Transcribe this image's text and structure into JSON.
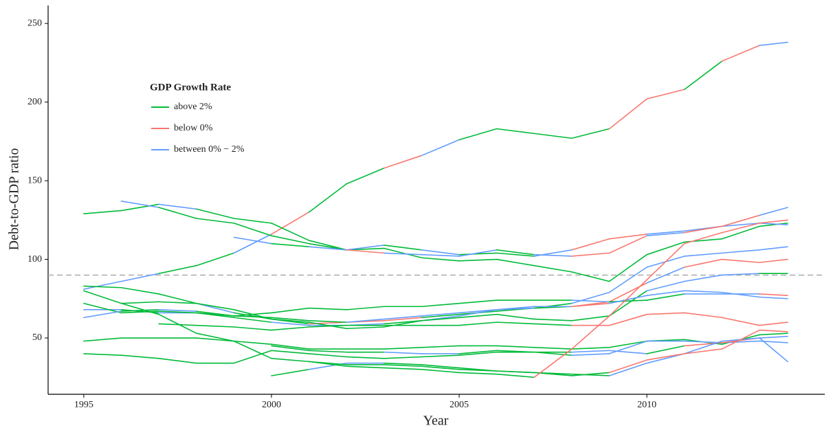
{
  "chart_data": {
    "type": "line",
    "x_label": "Year",
    "y_label": "Debt-to-GDP ratio",
    "legend_title": "GDP Growth Rate",
    "legend_position": "upper-left",
    "legend": [
      {
        "name": "above 2%",
        "color": "#00BA38"
      },
      {
        "name": "below 0%",
        "color": "#F8766D"
      },
      {
        "name": "between 0% − 2%",
        "color": "#619CFF"
      }
    ],
    "x": [
      1995,
      1996,
      1997,
      1998,
      1999,
      2000,
      2001,
      2002,
      2003,
      2004,
      2005,
      2006,
      2007,
      2008,
      2009,
      2010,
      2011,
      2012,
      2013,
      2013.75
    ],
    "lines": [
      {
        "values": [
          81,
          86,
          91,
          96,
          104,
          116,
          130,
          148,
          158,
          166,
          176,
          183,
          180,
          177,
          183,
          202,
          208,
          226,
          236,
          238
        ],
        "colors": [
          "#619CFF",
          "#619CFF",
          "#00BA38",
          "#00BA38",
          "#619CFF",
          "#F8766D",
          "#00BA38",
          "#00BA38",
          "#F8766D",
          "#619CFF",
          "#00BA38",
          "#00BA38",
          "#00BA38",
          "#00BA38",
          "#F8766D",
          "#F8766D",
          "#00BA38",
          "#F8766D",
          "#619CFF",
          "#00BA38"
        ]
      },
      {
        "values": [
          129,
          131,
          135,
          132,
          126,
          123,
          112,
          106,
          107,
          101,
          99,
          100,
          96,
          92,
          86,
          103,
          111,
          113,
          121,
          123
        ],
        "colors": [
          "#00BA38",
          "#00BA38",
          "#619CFF",
          "#00BA38",
          "#00BA38",
          "#00BA38",
          "#00BA38",
          "#00BA38",
          "#00BA38",
          "#00BA38",
          "#00BA38",
          "#00BA38",
          "#00BA38",
          "#00BA38",
          "#00BA38",
          "#00BA38",
          "#00BA38",
          "#00BA38",
          "#00BA38",
          "#00BA38"
        ]
      },
      {
        "values": [
          null,
          137,
          133,
          126,
          123,
          115,
          110,
          106,
          109,
          106,
          103,
          104,
          102,
          106,
          113,
          116,
          118,
          121,
          123,
          122
        ],
        "colors": [
          null,
          "#619CFF",
          "#00BA38",
          "#00BA38",
          "#00BA38",
          "#00BA38",
          "#00BA38",
          "#619CFF",
          "#00BA38",
          "#619CFF",
          "#00BA38",
          "#00BA38",
          "#619CFF",
          "#F8766D",
          "#F8766D",
          "#619CFF",
          "#619CFF",
          "#619CFF",
          "#619CFF",
          "#619CFF"
        ]
      },
      {
        "values": [
          null,
          null,
          null,
          null,
          114,
          110,
          108,
          106,
          104,
          103,
          102,
          106,
          103,
          102,
          104,
          115,
          117,
          121,
          128,
          133
        ],
        "colors": [
          null,
          null,
          null,
          null,
          "#619CFF",
          "#00BA38",
          "#619CFF",
          "#F8766D",
          "#619CFF",
          "#619CFF",
          "#619CFF",
          "#00BA38",
          "#619CFF",
          "#F8766D",
          "#F8766D",
          "#619CFF",
          "#F8766D",
          "#F8766D",
          "#619CFF",
          "#619CFF"
        ]
      },
      {
        "values": [
          null,
          72,
          73,
          72,
          66,
          62,
          59,
          60,
          61,
          63,
          65,
          67,
          69,
          70,
          73,
          85,
          95,
          100,
          98,
          100
        ],
        "colors": [
          null,
          "#00BA38",
          "#00BA38",
          "#619CFF",
          "#00BA38",
          "#00BA38",
          "#F8766D",
          "#F8766D",
          "#F8766D",
          "#00BA38",
          "#00BA38",
          "#00BA38",
          "#00BA38",
          "#F8766D",
          "#F8766D",
          "#619CFF",
          "#F8766D",
          "#F8766D",
          "#F8766D",
          "#F8766D"
        ]
      },
      {
        "values": [
          68,
          68,
          66,
          66,
          63,
          60,
          58,
          58,
          59,
          61,
          64,
          68,
          69,
          72,
          79,
          95,
          102,
          104,
          106,
          108
        ],
        "colors": [
          "#619CFF",
          "#00BA38",
          "#619CFF",
          "#00BA38",
          "#00BA38",
          "#619CFF",
          "#619CFF",
          "#619CFF",
          "#00BA38",
          "#619CFF",
          "#619CFF",
          "#619CFF",
          "#00BA38",
          "#619CFF",
          "#619CFF",
          "#619CFF",
          "#619CFF",
          "#619CFF",
          "#619CFF",
          "#619CFF"
        ]
      },
      {
        "values": [
          83,
          82,
          78,
          72,
          68,
          62,
          60,
          56,
          57,
          61,
          63,
          65,
          62,
          61,
          64,
          80,
          86,
          90,
          91,
          91
        ],
        "colors": [
          "#00BA38",
          "#00BA38",
          "#00BA38",
          "#00BA38",
          "#00BA38",
          "#00BA38",
          "#00BA38",
          "#00BA38",
          "#00BA38",
          "#00BA38",
          "#00BA38",
          "#00BA38",
          "#00BA38",
          "#00BA38",
          "#00BA38",
          "#619CFF",
          "#619CFF",
          "#619CFF",
          "#00BA38",
          "#00BA38"
        ]
      },
      {
        "values": [
          72,
          66,
          67,
          66,
          64,
          66,
          69,
          68,
          70,
          70,
          72,
          74,
          74,
          74,
          73,
          74,
          78,
          78,
          78,
          77
        ],
        "colors": [
          "#00BA38",
          "#00BA38",
          "#00BA38",
          "#00BA38",
          "#00BA38",
          "#00BA38",
          "#00BA38",
          "#00BA38",
          "#00BA38",
          "#00BA38",
          "#00BA38",
          "#00BA38",
          "#00BA38",
          "#619CFF",
          "#00BA38",
          "#00BA38",
          "#619CFF",
          "#619CFF",
          "#F8766D",
          "#619CFF"
        ]
      },
      {
        "values": [
          63,
          67,
          68,
          67,
          64,
          63,
          61,
          60,
          62,
          64,
          66,
          68,
          70,
          70,
          72,
          77,
          80,
          79,
          76,
          75
        ],
        "colors": [
          "#619CFF",
          "#00BA38",
          "#619CFF",
          "#00BA38",
          "#00BA38",
          "#00BA38",
          "#00BA38",
          "#619CFF",
          "#619CFF",
          "#619CFF",
          "#619CFF",
          "#619CFF",
          "#619CFF",
          "#F8766D",
          "#619CFF",
          "#619CFF",
          "#619CFF",
          "#619CFF",
          "#619CFF",
          "#619CFF"
        ]
      },
      {
        "values": [
          null,
          null,
          59,
          58,
          57,
          55,
          57,
          58,
          58,
          58,
          58,
          60,
          59,
          58,
          58,
          65,
          66,
          63,
          58,
          60
        ],
        "colors": [
          null,
          null,
          "#00BA38",
          "#00BA38",
          "#00BA38",
          "#00BA38",
          "#00BA38",
          "#00BA38",
          "#00BA38",
          "#00BA38",
          "#00BA38",
          "#00BA38",
          "#00BA38",
          "#F8766D",
          "#F8766D",
          "#F8766D",
          "#F8766D",
          "#F8766D",
          "#F8766D",
          "#F8766D"
        ]
      },
      {
        "values": [
          48,
          50,
          50,
          50,
          48,
          46,
          43,
          43,
          43,
          44,
          45,
          45,
          44,
          43,
          44,
          48,
          49,
          46,
          52,
          53
        ],
        "colors": [
          "#00BA38",
          "#00BA38",
          "#00BA38",
          "#00BA38",
          "#00BA38",
          "#00BA38",
          "#00BA38",
          "#00BA38",
          "#00BA38",
          "#00BA38",
          "#00BA38",
          "#00BA38",
          "#00BA38",
          "#00BA38",
          "#00BA38",
          "#00BA38",
          "#00BA38",
          "#00BA38",
          "#00BA38",
          "#00BA38"
        ]
      },
      {
        "values": [
          null,
          null,
          null,
          null,
          null,
          45,
          42,
          41,
          41,
          40,
          40,
          42,
          41,
          39,
          40,
          48,
          48,
          47,
          48,
          47
        ],
        "colors": [
          null,
          null,
          null,
          null,
          null,
          "#00BA38",
          "#00BA38",
          "#00BA38",
          "#619CFF",
          "#619CFF",
          "#00BA38",
          "#00BA38",
          "#00BA38",
          "#619CFF",
          "#619CFF",
          "#619CFF",
          "#619CFF",
          "#619CFF",
          "#619CFF",
          "#619CFF"
        ]
      },
      {
        "values": [
          40,
          39,
          37,
          34,
          34,
          42,
          40,
          38,
          37,
          38,
          39,
          41,
          41,
          41,
          42,
          40,
          45,
          47,
          50,
          51
        ],
        "colors": [
          "#00BA38",
          "#00BA38",
          "#00BA38",
          "#00BA38",
          "#00BA38",
          "#00BA38",
          "#00BA38",
          "#00BA38",
          "#00BA38",
          "#00BA38",
          "#00BA38",
          "#00BA38",
          "#00BA38",
          "#619CFF",
          "#619CFF",
          "#00BA38",
          "#F8766D",
          "#F8766D",
          "#619CFF",
          "#619CFF"
        ]
      },
      {
        "values": [
          null,
          null,
          null,
          null,
          null,
          26,
          30,
          34,
          34,
          33,
          31,
          29,
          28,
          27,
          26,
          34,
          40,
          48,
          50,
          35
        ],
        "colors": [
          null,
          null,
          null,
          null,
          null,
          "#00BA38",
          "#619CFF",
          "#619CFF",
          "#00BA38",
          "#00BA38",
          "#00BA38",
          "#00BA38",
          "#00BA38",
          "#00BA38",
          "#619CFF",
          "#619CFF",
          "#619CFF",
          "#619CFF",
          "#619CFF",
          "#619CFF"
        ]
      },
      {
        "values": [
          null,
          null,
          null,
          null,
          null,
          null,
          35,
          33,
          33,
          32,
          30,
          29,
          28,
          26,
          28,
          36,
          40,
          43,
          55,
          54
        ],
        "colors": [
          null,
          null,
          null,
          null,
          null,
          null,
          "#00BA38",
          "#00BA38",
          "#00BA38",
          "#00BA38",
          "#00BA38",
          "#00BA38",
          "#00BA38",
          "#00BA38",
          "#F8766D",
          "#F8766D",
          "#F8766D",
          "#F8766D",
          "#F8766D",
          "#F8766D"
        ]
      },
      {
        "values": [
          80,
          72,
          65,
          53,
          48,
          37,
          35,
          32,
          31,
          30,
          28,
          27,
          25,
          43,
          64,
          87,
          110,
          117,
          123,
          125
        ],
        "colors": [
          "#00BA38",
          "#00BA38",
          "#00BA38",
          "#00BA38",
          "#00BA38",
          "#00BA38",
          "#00BA38",
          "#00BA38",
          "#00BA38",
          "#00BA38",
          "#00BA38",
          "#00BA38",
          "#F8766D",
          "#F8766D",
          "#F8766D",
          "#F8766D",
          "#F8766D",
          "#F8766D",
          "#F8766D",
          "#F8766D"
        ]
      }
    ],
    "reference_line": 90,
    "reference_color": "#aaaaaa",
    "xlim": [
      1994.05,
      2014.74
    ],
    "ylim": [
      14.2,
      261.4
    ],
    "xticks": [
      1995,
      2000,
      2005,
      2010
    ],
    "yticks": [
      50,
      100,
      150,
      200,
      250
    ]
  }
}
